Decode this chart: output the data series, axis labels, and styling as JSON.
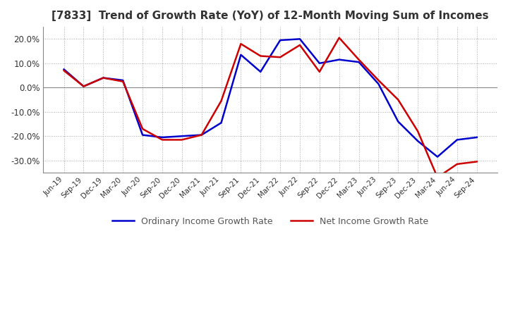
{
  "title": "[7833]  Trend of Growth Rate (YoY) of 12-Month Moving Sum of Incomes",
  "title_fontsize": 11,
  "background_color": "#ffffff",
  "plot_bg_color": "#ffffff",
  "grid_color": "#aaaaaa",
  "ylim": [
    -0.35,
    0.25
  ],
  "yticks": [
    -0.3,
    -0.2,
    -0.1,
    0.0,
    0.1,
    0.2
  ],
  "legend_labels": [
    "Ordinary Income Growth Rate",
    "Net Income Growth Rate"
  ],
  "legend_colors": [
    "#0000cc",
    "#cc0000"
  ],
  "dates": [
    "Jun-19",
    "Sep-19",
    "Dec-19",
    "Mar-20",
    "Jun-20",
    "Sep-20",
    "Dec-20",
    "Mar-21",
    "Jun-21",
    "Sep-21",
    "Dec-21",
    "Mar-22",
    "Jun-22",
    "Sep-22",
    "Dec-22",
    "Mar-23",
    "Jun-23",
    "Sep-23",
    "Dec-23",
    "Mar-24",
    "Jun-24",
    "Sep-24"
  ],
  "ordinary_income": [
    0.075,
    0.005,
    0.04,
    0.03,
    -0.195,
    -0.205,
    -0.2,
    -0.195,
    -0.145,
    0.135,
    0.065,
    0.195,
    0.2,
    0.1,
    0.115,
    0.105,
    0.015,
    -0.14,
    -0.22,
    -0.285,
    -0.215,
    -0.205
  ],
  "net_income": [
    0.07,
    0.005,
    0.04,
    0.025,
    -0.17,
    -0.215,
    -0.215,
    -0.195,
    -0.055,
    0.18,
    0.13,
    0.125,
    0.175,
    0.065,
    0.205,
    0.115,
    0.03,
    -0.05,
    -0.18,
    -0.37,
    -0.315,
    -0.305
  ]
}
